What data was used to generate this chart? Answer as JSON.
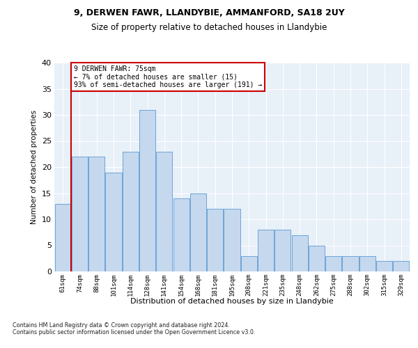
{
  "title1": "9, DERWEN FAWR, LLANDYBIE, AMMANFORD, SA18 2UY",
  "title2": "Size of property relative to detached houses in Llandybie",
  "xlabel": "Distribution of detached houses by size in Llandybie",
  "ylabel": "Number of detached properties",
  "categories": [
    "61sqm",
    "74sqm",
    "88sqm",
    "101sqm",
    "114sqm",
    "128sqm",
    "141sqm",
    "154sqm",
    "168sqm",
    "181sqm",
    "195sqm",
    "208sqm",
    "221sqm",
    "235sqm",
    "248sqm",
    "262sqm",
    "275sqm",
    "288sqm",
    "302sqm",
    "315sqm",
    "329sqm"
  ],
  "bar_values": [
    13,
    22,
    22,
    19,
    23,
    31,
    23,
    14,
    15,
    12,
    12,
    3,
    8,
    8,
    7,
    5,
    3,
    3,
    3,
    2,
    2
  ],
  "bar_color": "#c5d8ed",
  "bar_edge_color": "#5b9bd5",
  "vline_color": "#cc0000",
  "vline_x": 0.5,
  "annotation_text": "9 DERWEN FAWR: 75sqm\n← 7% of detached houses are smaller (15)\n93% of semi-detached houses are larger (191) →",
  "annotation_box_color": "#cc0000",
  "ylim": [
    0,
    40
  ],
  "yticks": [
    0,
    5,
    10,
    15,
    20,
    25,
    30,
    35,
    40
  ],
  "footer": "Contains HM Land Registry data © Crown copyright and database right 2024.\nContains public sector information licensed under the Open Government Licence v3.0.",
  "plot_bg_color": "#e8f0f8"
}
